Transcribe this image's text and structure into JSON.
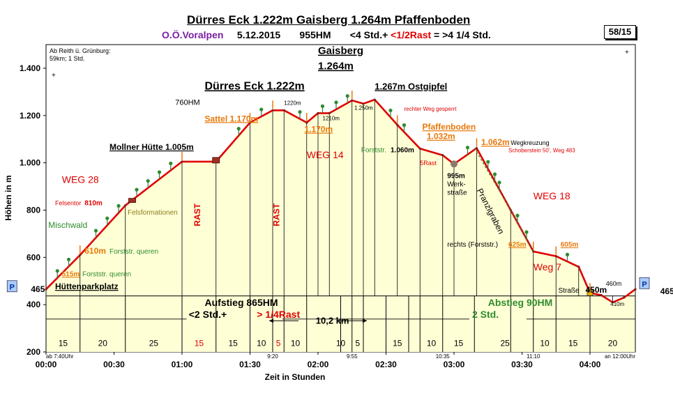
{
  "header": {
    "title": "Dürres Eck 1.222m Gaisberg 1.264m Pfaffenboden",
    "region": "O.Ö.Voralpen",
    "date": "5.12.2015",
    "hm": "955HM",
    "time_a": "<4 Std.+",
    "time_b": "<1/2Rast",
    "time_c": "= >4 1/4",
    "time_d": "Std.",
    "page": "58/15"
  },
  "start_note": {
    "line1": "Ab Reith ü. Grünburg:",
    "line2": "59km; 1 Std."
  },
  "colors": {
    "profile": "#e00000",
    "fill": "#ffffd6",
    "orange": "#e8780a",
    "green": "#2e8b2e",
    "red": "#e00000",
    "purple": "#7a1fa2"
  },
  "chart_data": {
    "type": "area",
    "xlabel": "Zeit in Stunden",
    "ylabel": "Höhen in m",
    "xlim": [
      0,
      260
    ],
    "ylim": [
      200,
      1500
    ],
    "x_ticks": [
      {
        "x": 0,
        "label": "00:00"
      },
      {
        "x": 30,
        "label": "00:30"
      },
      {
        "x": 60,
        "label": "01:00"
      },
      {
        "x": 90,
        "label": "01:30"
      },
      {
        "x": 120,
        "label": "02:00"
      },
      {
        "x": 150,
        "label": "02:30"
      },
      {
        "x": 180,
        "label": "03:00"
      },
      {
        "x": 210,
        "label": "03:30"
      },
      {
        "x": 240,
        "label": "04:00"
      }
    ],
    "y_ticks": [
      {
        "y": 200,
        "label": "200"
      },
      {
        "y": 400,
        "label": "400"
      },
      {
        "y": 600,
        "label": "600"
      },
      {
        "y": 800,
        "label": "800"
      },
      {
        "y": 1000,
        "label": "1.000"
      },
      {
        "y": 1200,
        "label": "1.200"
      },
      {
        "y": 1400,
        "label": "1.400"
      }
    ],
    "profile": [
      [
        0,
        465
      ],
      [
        15,
        610
      ],
      [
        35,
        820
      ],
      [
        60,
        1005
      ],
      [
        75,
        1005
      ],
      [
        90,
        1170
      ],
      [
        100,
        1222
      ],
      [
        105,
        1222
      ],
      [
        115,
        1170
      ],
      [
        120,
        1210
      ],
      [
        125,
        1210
      ],
      [
        135,
        1264
      ],
      [
        140,
        1250
      ],
      [
        145,
        1267
      ],
      [
        155,
        1160
      ],
      [
        165,
        1060
      ],
      [
        175,
        1032
      ],
      [
        180,
        995
      ],
      [
        190,
        1062
      ],
      [
        205,
        800
      ],
      [
        215,
        625
      ],
      [
        225,
        605
      ],
      [
        235,
        560
      ],
      [
        240,
        450
      ],
      [
        245,
        440
      ],
      [
        250,
        410
      ],
      [
        255,
        430
      ],
      [
        260,
        465
      ]
    ],
    "segments": [
      {
        "x": 7.5,
        "label": "15",
        "red": false
      },
      {
        "x": 25,
        "label": "20",
        "red": false
      },
      {
        "x": 47.5,
        "label": "25",
        "red": false
      },
      {
        "x": 67.5,
        "label": "15",
        "red": true
      },
      {
        "x": 82.5,
        "label": "15",
        "red": false
      },
      {
        "x": 95,
        "label": "10",
        "red": false
      },
      {
        "x": 102.5,
        "label": "5",
        "red": true
      },
      {
        "x": 110,
        "label": "10",
        "red": false
      },
      {
        "x": 130,
        "label": "10",
        "red": false
      },
      {
        "x": 137.5,
        "label": "5",
        "red": false
      },
      {
        "x": 155,
        "label": "15",
        "red": false
      },
      {
        "x": 170,
        "label": "10",
        "red": false
      },
      {
        "x": 182,
        "label": "15",
        "red": false
      },
      {
        "x": 202.5,
        "label": "25",
        "red": false
      },
      {
        "x": 220,
        "label": "10",
        "red": false
      },
      {
        "x": 232.5,
        "label": "15",
        "red": false
      },
      {
        "x": 250,
        "label": "20",
        "red": false
      }
    ],
    "annotations": [
      {
        "x": 120,
        "y": 1460,
        "text": "Gaisberg",
        "size": 15,
        "bold": true,
        "underline": true
      },
      {
        "x": 120,
        "y": 1395,
        "text": "1.264m",
        "size": 15,
        "bold": true,
        "underline": true
      },
      {
        "x": 70,
        "y": 1310,
        "text": "Dürres Eck 1.222m",
        "size": 16,
        "bold": true,
        "underline": true
      },
      {
        "x": 145,
        "y": 1310,
        "text": "1.267m Ostgipfel",
        "size": 13,
        "bold": true,
        "underline": true
      },
      {
        "x": 57,
        "y": 1245,
        "text": "760HM",
        "size": 11
      },
      {
        "x": 70,
        "y": 1175,
        "text": "Sattel 1.170m",
        "size": 12,
        "bold": true,
        "underline": true,
        "color": "orange"
      },
      {
        "x": 105,
        "y": 1245,
        "text": "1220m",
        "size": 8
      },
      {
        "x": 114,
        "y": 1130,
        "text": "1.170m",
        "size": 12,
        "bold": true,
        "underline": true,
        "color": "orange"
      },
      {
        "x": 122,
        "y": 1180,
        "text": "1210m",
        "size": 8
      },
      {
        "x": 136,
        "y": 1225,
        "text": "1.250m",
        "size": 8
      },
      {
        "x": 158,
        "y": 1220,
        "text": "rechter Weg gesperrt",
        "size": 8,
        "color": "red"
      },
      {
        "x": 166,
        "y": 1140,
        "text": "Pfaffenboden",
        "size": 12,
        "bold": true,
        "underline": true,
        "color": "orange"
      },
      {
        "x": 168,
        "y": 1100,
        "text": "1.032m",
        "size": 12,
        "bold": true,
        "underline": true,
        "color": "orange"
      },
      {
        "x": 28,
        "y": 1055,
        "text": "Mollner Hütte 1.005m",
        "size": 12,
        "bold": true,
        "underline": true
      },
      {
        "x": 115,
        "y": 1020,
        "text": "WEG 14",
        "size": 14,
        "color": "red"
      },
      {
        "x": 139,
        "y": 1045,
        "text": "Forststr.",
        "size": 10,
        "color": "green"
      },
      {
        "x": 152,
        "y": 1045,
        "text": "1.060m",
        "size": 10,
        "bold": true
      },
      {
        "x": 165,
        "y": 990,
        "text": "5Rast",
        "size": 9,
        "color": "red"
      },
      {
        "x": 177,
        "y": 935,
        "text": "995m",
        "size": 10,
        "bold": true
      },
      {
        "x": 177,
        "y": 900,
        "text": "Werk-",
        "size": 10
      },
      {
        "x": 177,
        "y": 865,
        "text": "straße",
        "size": 10
      },
      {
        "x": 192,
        "y": 1075,
        "text": "1.062m",
        "size": 12,
        "bold": true,
        "underline": true,
        "color": "orange"
      },
      {
        "x": 205,
        "y": 1075,
        "text": "Wegkreuzung",
        "size": 9
      },
      {
        "x": 204,
        "y": 1045,
        "text": "Schoberstein 50', Weg 483",
        "size": 8,
        "color": "red"
      },
      {
        "x": 7,
        "y": 915,
        "text": "WEG 28",
        "size": 14,
        "color": "red"
      },
      {
        "x": 215,
        "y": 845,
        "text": "WEG 18",
        "size": 14,
        "color": "red"
      },
      {
        "x": 4,
        "y": 820,
        "text": "Felsentor",
        "size": 9,
        "color": "red"
      },
      {
        "x": 17,
        "y": 820,
        "text": "810m",
        "size": 10,
        "bold": true,
        "color": "red"
      },
      {
        "x": 36,
        "y": 780,
        "text": "Felsformationen",
        "size": 10,
        "color": "olive"
      },
      {
        "x": 1,
        "y": 725,
        "text": "Mischwald",
        "size": 12,
        "color": "green"
      },
      {
        "x": 17,
        "y": 615,
        "text": "610m",
        "size": 12,
        "bold": true,
        "color": "orange"
      },
      {
        "x": 28,
        "y": 615,
        "text": "Forststr. queren",
        "size": 10,
        "color": "green"
      },
      {
        "x": 7,
        "y": 520,
        "text": "515m",
        "size": 10,
        "bold": true,
        "underline": true,
        "color": "orange"
      },
      {
        "x": 16,
        "y": 520,
        "text": "Forststr. queren",
        "size": 10,
        "color": "green"
      },
      {
        "x": 4,
        "y": 465,
        "text": "Hüttenparkplatz",
        "size": 12,
        "bold": true,
        "underline": true
      },
      {
        "x": 119,
        "y": 320,
        "text": "10,2 km",
        "size": 13,
        "bold": true
      },
      {
        "x": 177,
        "y": 645,
        "text": "rechts (Forststr.)",
        "size": 10
      },
      {
        "x": 204,
        "y": 645,
        "text": "625m",
        "size": 10,
        "bold": true,
        "underline": true,
        "color": "orange"
      },
      {
        "x": 227,
        "y": 645,
        "text": "605m",
        "size": 10,
        "bold": true,
        "underline": true,
        "color": "orange"
      },
      {
        "x": 215,
        "y": 545,
        "text": "Weg 7",
        "size": 14,
        "color": "red"
      },
      {
        "x": 226,
        "y": 450,
        "text": "Straße",
        "size": 10
      },
      {
        "x": 238,
        "y": 450,
        "text": "450m",
        "size": 12,
        "bold": true
      },
      {
        "x": 247,
        "y": 480,
        "text": "460m",
        "size": 9
      },
      {
        "x": 249,
        "y": 395,
        "text": "410m",
        "size": 8
      },
      {
        "x": 271,
        "y": 445,
        "text": "465m",
        "size": 12,
        "bold": true
      },
      {
        "x": 195,
        "y": 790,
        "text": "Pranzlgraben",
        "size": 12,
        "rotate": 63
      },
      {
        "x": 70,
        "y": 395,
        "text": "Aufstieg 865HM",
        "size": 14,
        "bold": true
      },
      {
        "x": 63,
        "y": 345,
        "text": "<2 Std.+",
        "size": 14,
        "bold": true
      },
      {
        "x": 93,
        "y": 345,
        "text": "> 1/4Rast",
        "size": 14,
        "bold": true,
        "color": "red"
      },
      {
        "x": 195,
        "y": 395,
        "text": "Abstieg 90HM",
        "size": 14,
        "bold": true,
        "color": "green"
      },
      {
        "x": 188,
        "y": 345,
        "text": "2 Std.",
        "size": 14,
        "bold": true,
        "color": "green"
      },
      {
        "x": 68,
        "y": 780,
        "text": "RAST",
        "size": 12,
        "bold": true,
        "rotate": -90,
        "color": "red"
      },
      {
        "x": 103,
        "y": 780,
        "text": "RAST",
        "size": 12,
        "bold": true,
        "rotate": -90,
        "color": "red"
      }
    ],
    "time_labels": [
      {
        "x": 0,
        "y": 180,
        "text": "ab 7:40Uhr"
      },
      {
        "x": 100,
        "y": 180,
        "text": "9:20"
      },
      {
        "x": 135,
        "y": 180,
        "text": "9:55"
      },
      {
        "x": 175,
        "y": 180,
        "text": "10:35"
      },
      {
        "x": 215,
        "y": 180,
        "text": "11:10"
      },
      {
        "x": 262,
        "y": 180,
        "text": "an 12:00Uhr"
      }
    ],
    "p_badges": [
      {
        "x": -15,
        "y": 475,
        "text": "P"
      },
      {
        "x": 264,
        "y": 488,
        "text": "P"
      }
    ]
  }
}
